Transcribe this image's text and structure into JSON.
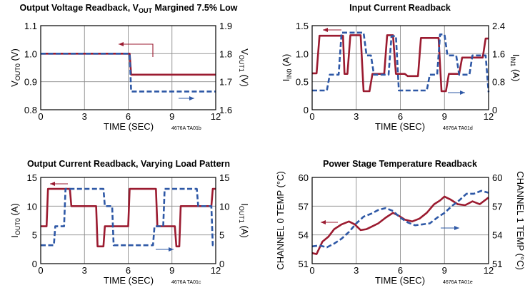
{
  "colors": {
    "channel0": "#9b1b30",
    "channel1": "#2e58a6",
    "grid": "#8c8c8c",
    "frame": "#000000"
  },
  "chart_data": [
    {
      "type": "line",
      "title": "Output Voltage Readback, V",
      "title_sub": "OUT",
      "title_rest": " Margined 7.5% Low",
      "xlabel": "TIME (SEC)",
      "ylabel_left": {
        "main": "V",
        "sub": "OUT0",
        "unit": " (V)"
      },
      "ylabel_right": {
        "main": "V",
        "sub": "OUT1",
        "unit": " (V)"
      },
      "xlim": [
        0,
        12
      ],
      "ylim": [
        0.8,
        1.1
      ],
      "y2lim": [
        1.6,
        1.9
      ],
      "xticks": [
        "0",
        "3",
        "6",
        "9",
        "12"
      ],
      "yticks": [
        "0.8",
        "0.9",
        "1.0",
        "1.1"
      ],
      "y2ticks": [
        "1.6",
        "1.7",
        "1.8",
        "1.9"
      ],
      "code": "4676A TA01b",
      "grid": true,
      "series": [
        {
          "axis": "left",
          "style": "solid",
          "x": [
            0,
            6.1,
            6.2,
            8,
            12
          ],
          "y": [
            1.0,
            1.0,
            0.925,
            0.925,
            0.925
          ]
        },
        {
          "axis": "right",
          "style": "dashed",
          "x": [
            0,
            6.1,
            6.2,
            9,
            12
          ],
          "y": [
            1.8,
            1.8,
            1.665,
            1.665,
            1.665
          ]
        }
      ]
    },
    {
      "type": "line",
      "title": "Input Current Readback",
      "xlabel": "TIME (SEC)",
      "ylabel_left": {
        "main": "I",
        "sub": "IN0",
        "unit": " (A)"
      },
      "ylabel_right": {
        "main": "I",
        "sub": "IN1",
        "unit": " (A)"
      },
      "xlim": [
        0,
        12
      ],
      "ylim": [
        0,
        1.5
      ],
      "y2lim": [
        0,
        2.4
      ],
      "xticks": [
        "0",
        "3",
        "6",
        "9",
        "12"
      ],
      "yticks": [
        "0",
        "0.5",
        "1.0",
        "1.5"
      ],
      "y2ticks": [
        "0",
        "0.8",
        "1.6",
        "2.4"
      ],
      "code": "4676A TA01d",
      "grid": true,
      "series": [
        {
          "axis": "left",
          "style": "solid",
          "x": [
            0,
            0.3,
            0.5,
            2.1,
            2.2,
            2.4,
            2.6,
            3.3,
            3.5,
            3.9,
            4.1,
            4.9,
            5.1,
            5.5,
            5.7,
            6.3,
            6.5,
            7.2,
            7.4,
            8.6,
            8.8,
            9.1,
            9.3,
            10.0,
            10.2,
            11.6,
            11.8,
            12
          ],
          "y": [
            0.65,
            0.65,
            1.32,
            1.32,
            0.64,
            0.64,
            1.33,
            1.33,
            0.33,
            0.33,
            0.64,
            0.64,
            1.33,
            1.33,
            0.64,
            0.64,
            0.6,
            0.6,
            1.28,
            1.28,
            0.33,
            0.33,
            0.64,
            0.64,
            0.93,
            0.93,
            1.27,
            1.27
          ]
        },
        {
          "axis": "right",
          "style": "dashed",
          "x": [
            0,
            1.0,
            1.2,
            1.8,
            2.0,
            3.5,
            3.7,
            4.0,
            4.2,
            5.2,
            5.4,
            5.7,
            5.9,
            7.8,
            8.0,
            8.5,
            8.7,
            9.0,
            9.2,
            9.8,
            10.0,
            10.7,
            10.9,
            11.8,
            12
          ],
          "y": [
            0.55,
            0.55,
            1.0,
            1.0,
            2.2,
            2.2,
            1.55,
            1.55,
            1.0,
            1.0,
            2.1,
            2.1,
            0.55,
            0.55,
            1.0,
            1.0,
            2.15,
            2.15,
            1.55,
            1.55,
            1.0,
            1.0,
            1.55,
            1.55,
            0.5
          ]
        }
      ]
    },
    {
      "type": "line",
      "title": "Output Current Readback, Varying Load Pattern",
      "xlabel": "TIME (SEC)",
      "ylabel_left": {
        "main": "I",
        "sub": "OUT0",
        "unit": " (A)"
      },
      "ylabel_right": {
        "main": "I",
        "sub": "OUT1",
        "unit": " (A)"
      },
      "xlim": [
        0,
        12
      ],
      "ylim": [
        0,
        15
      ],
      "y2lim": [
        0,
        15
      ],
      "xticks": [
        "0",
        "3",
        "6",
        "9",
        "12"
      ],
      "yticks": [
        "0",
        "5",
        "10",
        "15"
      ],
      "y2ticks": [
        "0",
        "5",
        "10",
        "15"
      ],
      "code": "4676A TA01c",
      "grid": true,
      "series": [
        {
          "axis": "left",
          "style": "solid",
          "x": [
            0,
            0.4,
            0.5,
            2.0,
            2.1,
            3.8,
            3.9,
            4.3,
            4.4,
            6.0,
            6.1,
            7.9,
            8.0,
            9.2,
            9.3,
            9.5,
            9.6,
            11.7,
            11.8,
            12
          ],
          "y": [
            6.5,
            6.5,
            13,
            13,
            10,
            10,
            3,
            3,
            6.5,
            6.5,
            13,
            13,
            6.5,
            6.5,
            3,
            3,
            10,
            10,
            13,
            13
          ]
        },
        {
          "axis": "right",
          "style": "dashed",
          "x": [
            0,
            0.9,
            1.0,
            1.6,
            1.7,
            4.3,
            4.4,
            4.9,
            5.0,
            7.7,
            7.8,
            8.4,
            8.5,
            10.7,
            10.8,
            11.7,
            11.8,
            12
          ],
          "y": [
            3.2,
            3.2,
            6.5,
            6.5,
            13,
            13,
            10,
            10,
            3.2,
            3.2,
            6.5,
            6.5,
            13,
            13,
            10,
            10,
            3.2,
            3.2
          ]
        }
      ]
    },
    {
      "type": "line",
      "title": "Power Stage Temperature Readback",
      "xlabel": "TIME (SEC)",
      "ylabel_left": {
        "main": "CHANNEL 0 TEMP (°C)"
      },
      "ylabel_right": {
        "main": "CHANNEL 1 TEMP (°C)"
      },
      "xlim": [
        0,
        12
      ],
      "ylim": [
        51,
        60
      ],
      "y2lim": [
        51,
        60
      ],
      "xticks": [
        "0",
        "3",
        "6",
        "9",
        "12"
      ],
      "yticks": [
        "51",
        "54",
        "57",
        "60"
      ],
      "y2ticks": [
        "51",
        "54",
        "57",
        "60"
      ],
      "code": "4676A TA01e",
      "grid": true,
      "series": [
        {
          "axis": "left",
          "style": "solid",
          "x": [
            0,
            0.3,
            0.7,
            1.1,
            1.5,
            2.0,
            2.5,
            2.9,
            3.3,
            3.7,
            4.1,
            4.5,
            5.0,
            5.5,
            5.9,
            6.3,
            6.8,
            7.3,
            7.8,
            8.3,
            8.7,
            9.0,
            9.4,
            9.9,
            10.4,
            10.9,
            11.4,
            12
          ],
          "y": [
            52.1,
            52.0,
            53.3,
            53.8,
            54.6,
            55.1,
            55.4,
            55.1,
            54.5,
            54.6,
            54.9,
            55.2,
            55.8,
            56.3,
            56.0,
            55.6,
            55.4,
            55.7,
            56.3,
            57.2,
            57.6,
            58.0,
            57.7,
            57.2,
            57.1,
            57.5,
            57.2,
            57.9
          ]
        },
        {
          "axis": "right",
          "style": "dashed",
          "x": [
            0,
            0.5,
            1.0,
            1.5,
            2.0,
            2.5,
            3.0,
            3.5,
            4.0,
            4.5,
            5.0,
            5.5,
            6.0,
            6.5,
            7.0,
            7.5,
            8.0,
            8.5,
            9.0,
            9.5,
            10.0,
            10.5,
            11.0,
            11.5,
            12
          ],
          "y": [
            52.8,
            52.9,
            52.7,
            53.1,
            53.6,
            54.3,
            55.2,
            55.9,
            56.2,
            56.6,
            56.8,
            56.5,
            55.8,
            55.3,
            55.0,
            55.1,
            55.2,
            55.8,
            56.3,
            57.0,
            57.6,
            58.3,
            58.3,
            58.6,
            58.4
          ]
        }
      ]
    }
  ]
}
